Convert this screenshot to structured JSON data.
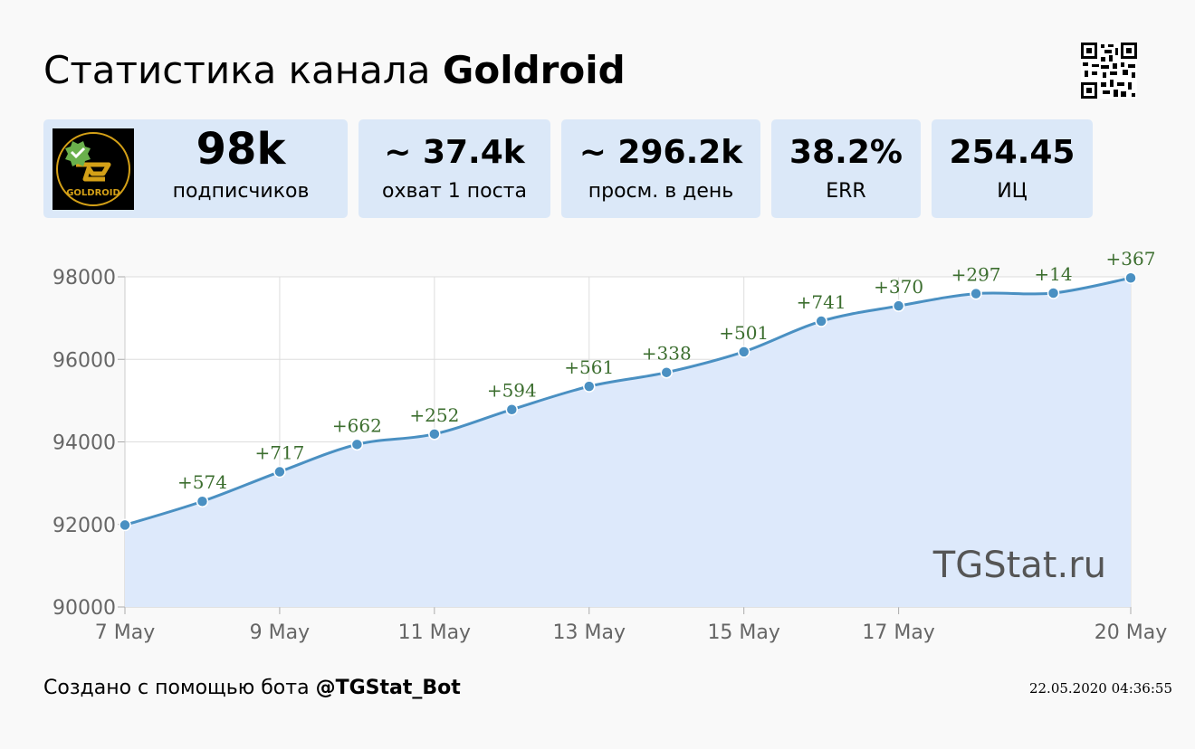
{
  "header": {
    "title_prefix": "Статистика канала",
    "channel_name": "Goldroid"
  },
  "stats": [
    {
      "value": "98k",
      "label": "подписчиков"
    },
    {
      "value": "~ 37.4k",
      "label": "охват 1 поста"
    },
    {
      "value": "~ 296.2k",
      "label": "просм. в день"
    },
    {
      "value": "38.2%",
      "label": "ERR"
    },
    {
      "value": "254.45",
      "label": "ИЦ"
    }
  ],
  "logo": {
    "text": "GOLDROID",
    "icon": "goldroid-logo-icon",
    "accent": "#d4a017",
    "badge": "#6ab04c"
  },
  "chart_data": {
    "type": "area",
    "x": [
      "7 May",
      "8 May",
      "9 May",
      "10 May",
      "11 May",
      "12 May",
      "13 May",
      "14 May",
      "15 May",
      "16 May",
      "17 May",
      "18 May",
      "19 May",
      "20 May"
    ],
    "x_tick_labels": [
      "7 May",
      "9 May",
      "11 May",
      "13 May",
      "15 May",
      "17 May",
      "20 May"
    ],
    "y": [
      91985,
      92559,
      93276,
      93938,
      94190,
      94784,
      95345,
      95683,
      96184,
      96925,
      97295,
      97592,
      97606,
      97973
    ],
    "annotations": [
      "",
      "+574",
      "+717",
      "+662",
      "+252",
      "+594",
      "+561",
      "+338",
      "+501",
      "+741",
      "+370",
      "+297",
      "+14",
      "+367"
    ],
    "ylim": [
      90000,
      98000
    ],
    "y_ticks": [
      90000,
      92000,
      94000,
      96000,
      98000
    ],
    "grid": true,
    "watermark": "TGStat.ru",
    "colors": {
      "line": "#4a90c2",
      "fill": "#dde9fb",
      "annotation": "#3c6e2f",
      "grid": "#dddddd",
      "axis_text": "#666666"
    }
  },
  "footer": {
    "prefix": "Создано с помощью бота",
    "bot": "@TGStat_Bot",
    "timestamp": "22.05.2020 04:36:55"
  }
}
